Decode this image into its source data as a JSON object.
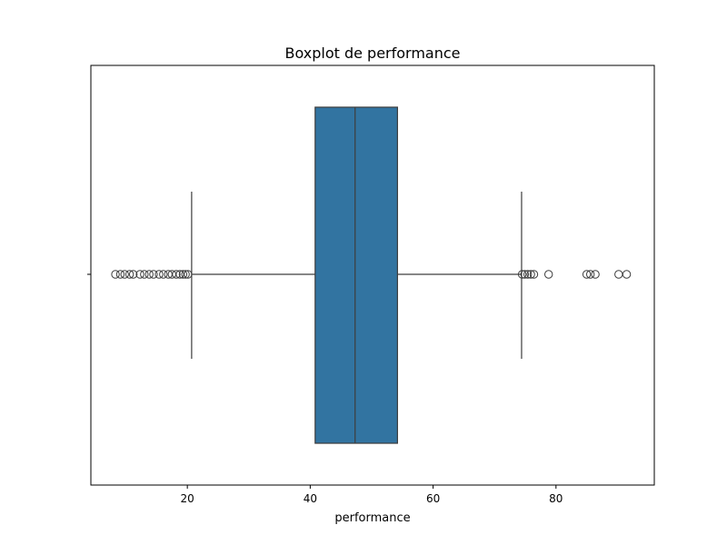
{
  "chart_data": {
    "type": "box",
    "title": "Boxplot de performance",
    "xlabel": "performance",
    "ylabel": "",
    "xlim": [
      4.3,
      96.0
    ],
    "xticks": [
      20,
      40,
      60,
      80
    ],
    "grid": false,
    "orientation": "horizontal",
    "box": {
      "q1": 40.8,
      "median": 47.3,
      "q3": 54.2,
      "whisker_low": 20.7,
      "whisker_high": 74.4,
      "fill": "#3274a1",
      "line_color": "#3d3d3d"
    },
    "outliers": [
      8.3,
      9.1,
      9.8,
      10.6,
      11.2,
      12.3,
      13.0,
      13.8,
      14.5,
      15.4,
      16.1,
      16.9,
      17.5,
      18.2,
      18.8,
      19.3,
      19.7,
      20.1,
      74.5,
      74.9,
      75.4,
      75.9,
      76.4,
      78.8,
      85.0,
      85.6,
      86.4,
      90.2,
      91.5
    ]
  }
}
